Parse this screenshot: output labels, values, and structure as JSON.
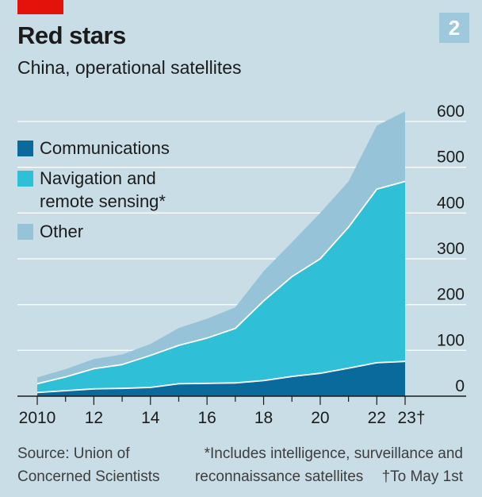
{
  "header": {
    "title": "Red stars",
    "subtitle": "China, operational satellites",
    "chart_number": "2"
  },
  "footer": {
    "source_line1": "Source: Union of",
    "source_line2": "Concerned Scientists",
    "note_line1": "*Includes intelligence, surveillance and",
    "note_line2": "reconnaissance satellites",
    "note_line3": "†To May 1st"
  },
  "colors": {
    "background": "#c8dde6",
    "communications": "#0a6a9c",
    "navigation": "#2fc0d8",
    "other": "#97c3d8",
    "grid": "#ffffff",
    "brand": "#e3120b"
  },
  "chart_data": {
    "type": "area",
    "stacked": true,
    "title": "Red stars",
    "subtitle": "China, operational satellites",
    "x": [
      2010,
      2011,
      2012,
      2013,
      2014,
      2015,
      2016,
      2017,
      2018,
      2019,
      2020,
      2021,
      2022,
      2023
    ],
    "xtick_values": [
      2010,
      2012,
      2014,
      2016,
      2018,
      2020,
      2022,
      2023
    ],
    "xtick_labels": [
      "2010",
      "12",
      "14",
      "16",
      "18",
      "20",
      "22",
      "23†"
    ],
    "ylim": [
      0,
      600
    ],
    "yticks": [
      0,
      100,
      200,
      300,
      400,
      500,
      600
    ],
    "ytick_labels": [
      "0",
      "100",
      "200",
      "300",
      "400",
      "500",
      "600"
    ],
    "y_axis_side": "right",
    "grid": true,
    "legend_position": "top-left",
    "series": [
      {
        "name": "Communications",
        "color": "#0a6a9c",
        "values": [
          8,
          12,
          16,
          17,
          19,
          27,
          28,
          29,
          34,
          43,
          50,
          61,
          73,
          76
        ]
      },
      {
        "name": "Navigation and remote sensing*",
        "color": "#2fc0d8",
        "values": [
          19,
          30,
          44,
          52,
          70,
          84,
          99,
          119,
          174,
          218,
          250,
          308,
          379,
          393
        ]
      },
      {
        "name": "Other",
        "color": "#97c3d8",
        "values": [
          14,
          17,
          21,
          22,
          25,
          38,
          42,
          46,
          65,
          75,
          100,
          100,
          139,
          153
        ]
      }
    ]
  }
}
